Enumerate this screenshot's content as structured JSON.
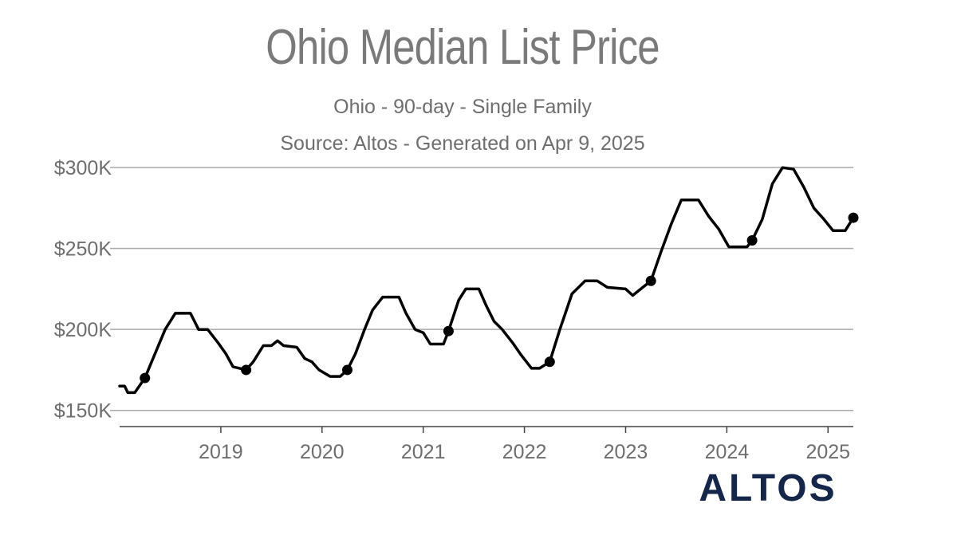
{
  "title": "Ohio Median List Price",
  "subtitle": "Ohio - 90-day - Single Family",
  "source": "Source: Altos - Generated on Apr 9, 2025",
  "brand": "ALTOS",
  "colors": {
    "line": "#000000",
    "grid": "#aaaaaa",
    "text": "#6e6e6e",
    "brand": "#14264a"
  },
  "chart_data": {
    "type": "line",
    "title": "Ohio Median List Price",
    "xlabel": "",
    "ylabel": "",
    "xlim": [
      2018.0,
      2025.25
    ],
    "ylim": [
      140000,
      305000
    ],
    "grid": "horizontal",
    "yticks": [
      150000,
      200000,
      250000,
      300000
    ],
    "ytick_labels": [
      "$150K",
      "$200K",
      "$250K",
      "$300K"
    ],
    "xticks": [
      2019,
      2020,
      2021,
      2022,
      2023,
      2024,
      2025
    ],
    "xtick_labels": [
      "2019",
      "2020",
      "2021",
      "2022",
      "2023",
      "2024",
      "2025"
    ],
    "series": [
      {
        "values": [
          [
            2018.0,
            165000
          ],
          [
            2018.05,
            165000
          ],
          [
            2018.08,
            161000
          ],
          [
            2018.15,
            161000
          ],
          [
            2018.25,
            170000
          ],
          [
            2018.35,
            185000
          ],
          [
            2018.45,
            200000
          ],
          [
            2018.55,
            210000
          ],
          [
            2018.7,
            210000
          ],
          [
            2018.78,
            200000
          ],
          [
            2018.87,
            200000
          ],
          [
            2018.97,
            192000
          ],
          [
            2019.05,
            185000
          ],
          [
            2019.12,
            177000
          ],
          [
            2019.25,
            175000
          ],
          [
            2019.32,
            180000
          ],
          [
            2019.42,
            190000
          ],
          [
            2019.5,
            190000
          ],
          [
            2019.56,
            193000
          ],
          [
            2019.62,
            190000
          ],
          [
            2019.75,
            189000
          ],
          [
            2019.83,
            182000
          ],
          [
            2019.9,
            180000
          ],
          [
            2019.97,
            175000
          ],
          [
            2020.08,
            171000
          ],
          [
            2020.18,
            171000
          ],
          [
            2020.25,
            175000
          ],
          [
            2020.33,
            185000
          ],
          [
            2020.42,
            200000
          ],
          [
            2020.5,
            212000
          ],
          [
            2020.6,
            220000
          ],
          [
            2020.76,
            220000
          ],
          [
            2020.83,
            210000
          ],
          [
            2020.92,
            200000
          ],
          [
            2021.0,
            198000
          ],
          [
            2021.07,
            191000
          ],
          [
            2021.2,
            191000
          ],
          [
            2021.25,
            199000
          ],
          [
            2021.35,
            218000
          ],
          [
            2021.42,
            225000
          ],
          [
            2021.55,
            225000
          ],
          [
            2021.62,
            215000
          ],
          [
            2021.7,
            205000
          ],
          [
            2021.78,
            200000
          ],
          [
            2021.88,
            192000
          ],
          [
            2021.97,
            184000
          ],
          [
            2022.07,
            176000
          ],
          [
            2022.15,
            176000
          ],
          [
            2022.25,
            180000
          ],
          [
            2022.35,
            200000
          ],
          [
            2022.47,
            222000
          ],
          [
            2022.6,
            230000
          ],
          [
            2022.72,
            230000
          ],
          [
            2022.82,
            226000
          ],
          [
            2023.0,
            225000
          ],
          [
            2023.07,
            221000
          ],
          [
            2023.15,
            225000
          ],
          [
            2023.25,
            230000
          ],
          [
            2023.35,
            248000
          ],
          [
            2023.45,
            265000
          ],
          [
            2023.55,
            280000
          ],
          [
            2023.72,
            280000
          ],
          [
            2023.82,
            270000
          ],
          [
            2023.92,
            262000
          ],
          [
            2024.02,
            251000
          ],
          [
            2024.2,
            251000
          ],
          [
            2024.25,
            255000
          ],
          [
            2024.35,
            268000
          ],
          [
            2024.45,
            290000
          ],
          [
            2024.55,
            300000
          ],
          [
            2024.66,
            299000
          ],
          [
            2024.76,
            288000
          ],
          [
            2024.86,
            275000
          ],
          [
            2024.96,
            268000
          ],
          [
            2025.05,
            261000
          ],
          [
            2025.17,
            261000
          ],
          [
            2025.25,
            269000
          ]
        ]
      }
    ],
    "markers": [
      [
        2018.25,
        170000
      ],
      [
        2019.25,
        175000
      ],
      [
        2020.25,
        175000
      ],
      [
        2021.25,
        199000
      ],
      [
        2022.25,
        180000
      ],
      [
        2023.25,
        230000
      ],
      [
        2024.25,
        255000
      ],
      [
        2025.25,
        269000
      ]
    ]
  }
}
